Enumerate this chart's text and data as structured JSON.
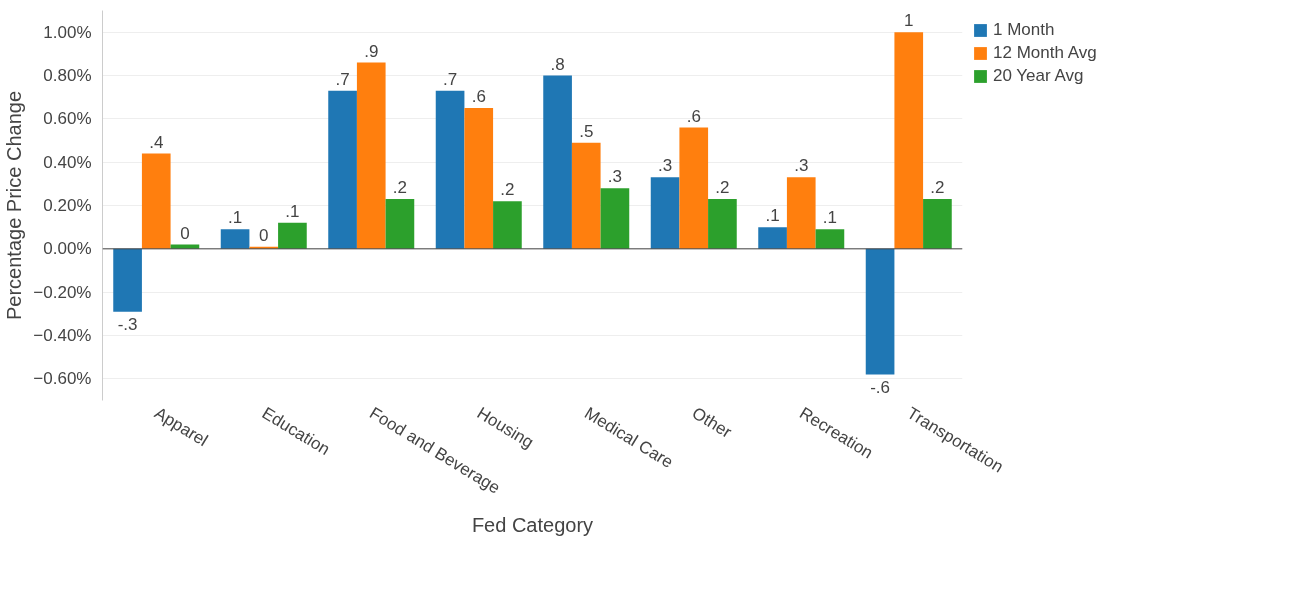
{
  "chart_data": {
    "type": "bar",
    "xlabel": "Fed Category",
    "ylabel": "Percentage Price Change",
    "categories": [
      "Apparel",
      "Education",
      "Food and Beverage",
      "Housing",
      "Medical Care",
      "Other",
      "Recreation",
      "Transportation"
    ],
    "series": [
      {
        "name": "1 Month",
        "color": "#1f77b4",
        "values": [
          -0.29,
          0.09,
          0.73,
          0.73,
          0.8,
          0.33,
          0.1,
          -0.58
        ],
        "value_labels": [
          "-.3",
          ".1",
          ".7",
          ".7",
          ".8",
          ".3",
          ".1",
          "-.6"
        ]
      },
      {
        "name": "12 Month Avg",
        "color": "#ff7f0e",
        "values": [
          0.44,
          0.01,
          0.86,
          0.65,
          0.49,
          0.56,
          0.33,
          1.0
        ],
        "value_labels": [
          ".4",
          "0",
          ".9",
          ".6",
          ".5",
          ".6",
          ".3",
          "1"
        ]
      },
      {
        "name": "20 Year Avg",
        "color": "#2ca02c",
        "values": [
          0.02,
          0.12,
          0.23,
          0.22,
          0.28,
          0.23,
          0.09,
          0.23
        ],
        "value_labels": [
          "0",
          ".1",
          ".2",
          ".2",
          ".3",
          ".2",
          ".1",
          ".2"
        ]
      }
    ],
    "ylim": [
      -0.7,
      1.1
    ],
    "yticks": [
      {
        "value": -0.6,
        "label": "−0.60%"
      },
      {
        "value": -0.4,
        "label": "−0.40%"
      },
      {
        "value": -0.2,
        "label": "−0.20%"
      },
      {
        "value": 0,
        "label": "0.00%"
      },
      {
        "value": 0.2,
        "label": "0.20%"
      },
      {
        "value": 0.4,
        "label": "0.40%"
      },
      {
        "value": 0.6,
        "label": "0.60%"
      },
      {
        "value": 0.8,
        "label": "0.80%"
      },
      {
        "value": 1.0,
        "label": "1.00%"
      }
    ],
    "grid": "y",
    "legend": "top right"
  }
}
